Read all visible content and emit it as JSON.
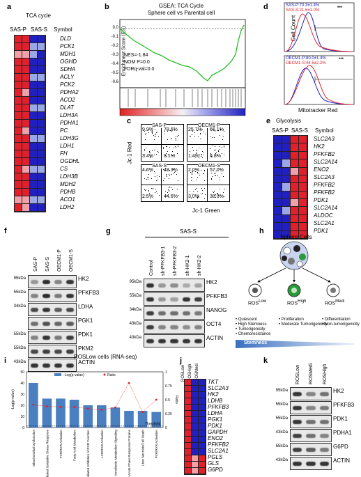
{
  "panels": {
    "a": {
      "label": "a",
      "title": "TCA cycle",
      "cols": [
        "SAS-P",
        "SAS-S"
      ],
      "sym": "Symbol",
      "genes": [
        "DLD",
        "PCK1",
        "MDH1",
        "OGHD",
        "SDHA",
        "ACLY",
        "PCK2",
        "PDHA2",
        "ACO2",
        "DLAT",
        "LDH3A",
        "PDHA1",
        "PC",
        "LDH3G",
        "LDH1",
        "FH",
        "OGDHL",
        "CS",
        "LDH3B",
        "MDH2",
        "PDHB",
        "ACO1",
        "LDH2"
      ]
    },
    "b": {
      "label": "b",
      "title": "GSEA: TCA Cycle",
      "subtitle": "Sphere cell vs Parental cell",
      "ylabel": "Enrichment Score (ES)",
      "yticks": [
        "0.0",
        "-0.1",
        "-0.2",
        "-0.3",
        "-0.4",
        "-0.5",
        "-0.6"
      ],
      "nes": "NES=-1.84",
      "nom": "NOM P=0.0",
      "fdr": "FDRq-val=0.0"
    },
    "c": {
      "label": "c",
      "ylabel": "Jc-1 Red",
      "xlabel": "Jc-1 Green",
      "plots": [
        {
          "name": "SAS-P",
          "ul": "9.9%",
          "ur": "78.6%",
          "ll": "3.4%",
          "lr": "8.1%"
        },
        {
          "name": "OECM1-P",
          "ul": "25.7%",
          "ur": "66.1%",
          "ll": "1.4%",
          "lr": "6.8%"
        },
        {
          "name": "SAS-S",
          "ul": "4.6%",
          "ur": "48.3%",
          "ll": "2.5%",
          "lr": "44.6%"
        },
        {
          "name": "OECM1-S",
          "ul": "2.0%",
          "ur": "57.0%",
          "ll": "3.0%",
          "lr": "38.0%"
        }
      ]
    },
    "d": {
      "label": "d",
      "leg1": "SAS-P:70.3±1.4%",
      "leg2": "SAS-S:21.6±1.0%",
      "leg3": "OECM1-P:80.0±1.4%",
      "leg4": "OECM1-S:44.5±2.2%",
      "stars": "***",
      "ylabel": "Cell Count",
      "xlabel": "Mitotracker Red"
    },
    "e": {
      "label": "e",
      "title": "Glycolysis",
      "cols": [
        "SAS-P",
        "SAS-S"
      ],
      "sym": "Symbol",
      "genes": [
        "SLC2A3",
        "HK2",
        "PFKFB2",
        "SLC2A14",
        "ENO2",
        "SLC2A3",
        "PFKFB2",
        "PFKFB2",
        "PDK1",
        "SLC2A14",
        "ALDOC",
        "SLC2A1",
        "PDK1"
      ]
    },
    "f": {
      "label": "f",
      "lanes": [
        "SAS-P",
        "SAS-S",
        "OECM1-P",
        "OECM1-S"
      ],
      "mw": [
        "95kDa",
        "55kDa",
        "34kDa",
        "",
        "55kDa",
        "55kDa",
        "43kDa"
      ],
      "bands": [
        "HK2",
        "PFKFB3",
        "LDHA",
        "PGK1",
        "PDK1",
        "PKM2",
        "ACTIN"
      ]
    },
    "g": {
      "label": "g",
      "group": "SAS-S",
      "lanes": [
        "Control",
        "sh-PFKFB3-1",
        "sh-PFKFB3-2",
        "sh-HK2-1",
        "sh-HK2-2"
      ],
      "mw": [
        "95kDa",
        "55kDa",
        "34kDa",
        "43kDa",
        "43kDa"
      ],
      "bands": [
        "HK2",
        "PFKFB3",
        "NANOG",
        "OCT4",
        "ACTIN"
      ]
    },
    "h": {
      "label": "h",
      "title": "Sphere Cells",
      "ros": [
        "ROS",
        "ROS",
        "ROS"
      ],
      "sup": [
        "Low",
        "High",
        "Medi"
      ],
      "col1": [
        "• Quiescent",
        "• High Stemness",
        "• Tumorigenicity",
        "• Chemoresistance"
      ],
      "col2": [
        "• Proliferation",
        "• Moderate Tumorigenicity"
      ],
      "col3": [
        "• Differentiation",
        "• Non-tumorigenicity"
      ],
      "stemness": "Stemness"
    },
    "i": {
      "label": "i",
      "title": "ROSLow cells (RNA-seq)",
      "legend_bar": "-Log(p-value)",
      "legend_ratio": "Ratio",
      "threshold": "Threshold",
      "ylabel": "-Log(p-value)",
      "y2label": "Ratio"
    },
    "j": {
      "label": "j",
      "cols": [
        "ROSLow",
        "ROSHigh",
        "ROSMedi"
      ],
      "genes": [
        "TKT",
        "SLC2A3",
        "HK2",
        "LDHB",
        "PFKFB3",
        "LDHA",
        "PGK1",
        "PDK1",
        "GAPDH",
        "ENO2",
        "PFKFB2",
        "SLC2A1",
        "PGLS",
        "GLS",
        "G6PD"
      ]
    },
    "k": {
      "label": "k",
      "lanes": [
        "ROSLow",
        "ROSMedi",
        "ROSHigh"
      ],
      "mw": [
        "95kDa",
        "55kDa",
        "55kDa",
        "43kDa",
        "55kDa",
        "43kDa"
      ],
      "bands": [
        "HK2",
        "PFKFB3",
        "PDK1",
        "PDHA1",
        "G6PD",
        "ACTIN"
      ]
    }
  },
  "chart_data": {
    "type": "bar",
    "title": "ROSLow cells (RNA-seq)",
    "categories": [
      "Mitochondrial Dysfunction",
      "NRF2-mediated Oxidative Stress Response",
      "FXR/RXR Activation",
      "Fatty Acid Metabolism",
      "LPS/IL-1 Mediated Inhibition of RXR Function",
      "LXR/RXR Activation",
      "Xenobiotic Metabolism Signaling",
      "Positive Acute Phase Response Proteins",
      "Liver Necrosis/Cell Death",
      "PXR/RXR Activation"
    ],
    "series": [
      {
        "name": "-Log(p-value)",
        "values": [
          40,
          26,
          26,
          25,
          20,
          20,
          18,
          15,
          15,
          14
        ]
      },
      {
        "name": "Ratio",
        "values": [
          0.41,
          0.38,
          0.37,
          0.37,
          0.34,
          0.32,
          0.36,
          0.8,
          0.28,
          0.5
        ]
      }
    ],
    "ylim": [
      0,
      50
    ],
    "y2lim": [
      0,
      1.0
    ],
    "yticks": [
      0,
      10,
      20,
      30,
      40,
      50
    ],
    "y2ticks": [
      0,
      0.25,
      0.5,
      0.75,
      1.0
    ],
    "threshold": 1.3,
    "legend": "top"
  },
  "colors": {
    "red": "#e0202a",
    "blue": "#2020c0",
    "lightred": "#f2a0a8",
    "lightblue": "#9aa8e8",
    "barblue": "#4a7fc0",
    "green": "#22c022"
  }
}
